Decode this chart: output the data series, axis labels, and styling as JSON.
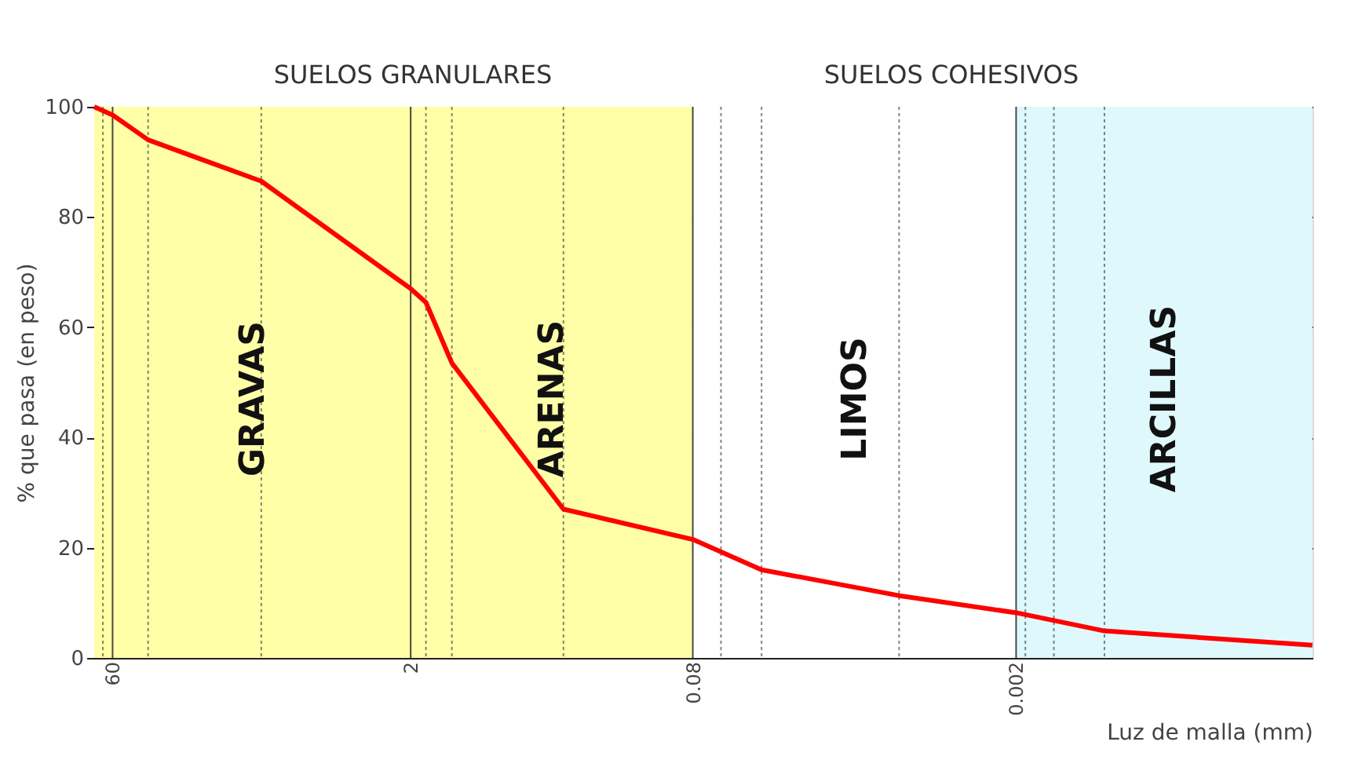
{
  "chart_data": {
    "type": "line",
    "xlabel": "Luz de malla (mm)",
    "ylabel": "% que pasa (en peso)",
    "x": [
      74,
      60,
      40,
      11,
      2,
      1.68,
      1.25,
      0.35,
      0.08,
      0.0365,
      0.0076,
      0.002,
      0.00073,
      6.8e-05
    ],
    "series": [
      {
        "color": "#ff0000",
        "values": [
          100,
          98.5,
          94,
          86.5,
          67,
          64.5,
          53.5,
          27,
          21.5,
          16,
          11.3,
          8.2,
          4.9,
          2.3
        ]
      }
    ],
    "xlim": [
      74,
      6.8e-05
    ],
    "log": "x",
    "xticks": [
      {
        "value": 67,
        "label": null
      },
      60,
      {
        "value": 40,
        "label": null
      },
      {
        "value": 11,
        "label": null
      },
      2,
      {
        "value": 1.68,
        "label": null
      },
      {
        "value": 1.25,
        "label": null
      },
      {
        "value": 0.35,
        "label": null
      },
      0.08,
      {
        "value": 0.058,
        "label": null
      },
      {
        "value": 0.0365,
        "label": null
      },
      {
        "value": 0.0076,
        "label": null
      },
      0.002,
      {
        "value": 0.0018,
        "label": null
      },
      {
        "value": 0.0013,
        "label": null
      },
      {
        "value": 0.00073,
        "label": null
      }
    ],
    "ylim": [
      0,
      100
    ],
    "yticks": [
      0,
      20,
      40,
      60,
      80,
      100
    ],
    "grid": true,
    "marker": "none",
    "line_style": "solid",
    "bands": [
      {
        "axis": "x",
        "from": 74,
        "to": 2,
        "label": "GRAVAS",
        "color": "#ffffa8"
      },
      {
        "axis": "x",
        "from": 2,
        "to": 0.08,
        "label": "ARENAS",
        "color": "#ffffa8"
      },
      {
        "axis": "x",
        "from": 0.08,
        "to": 0.002,
        "label": "LIMOS",
        "color": "#ffffff"
      },
      {
        "axis": "x",
        "from": 0.002,
        "to": 6.8e-05,
        "label": "ARCILLAS",
        "color": "#dff8fc"
      }
    ],
    "annotations": [
      "SUELOS GRANULARES",
      "SUELOS COHESIVOS"
    ]
  }
}
